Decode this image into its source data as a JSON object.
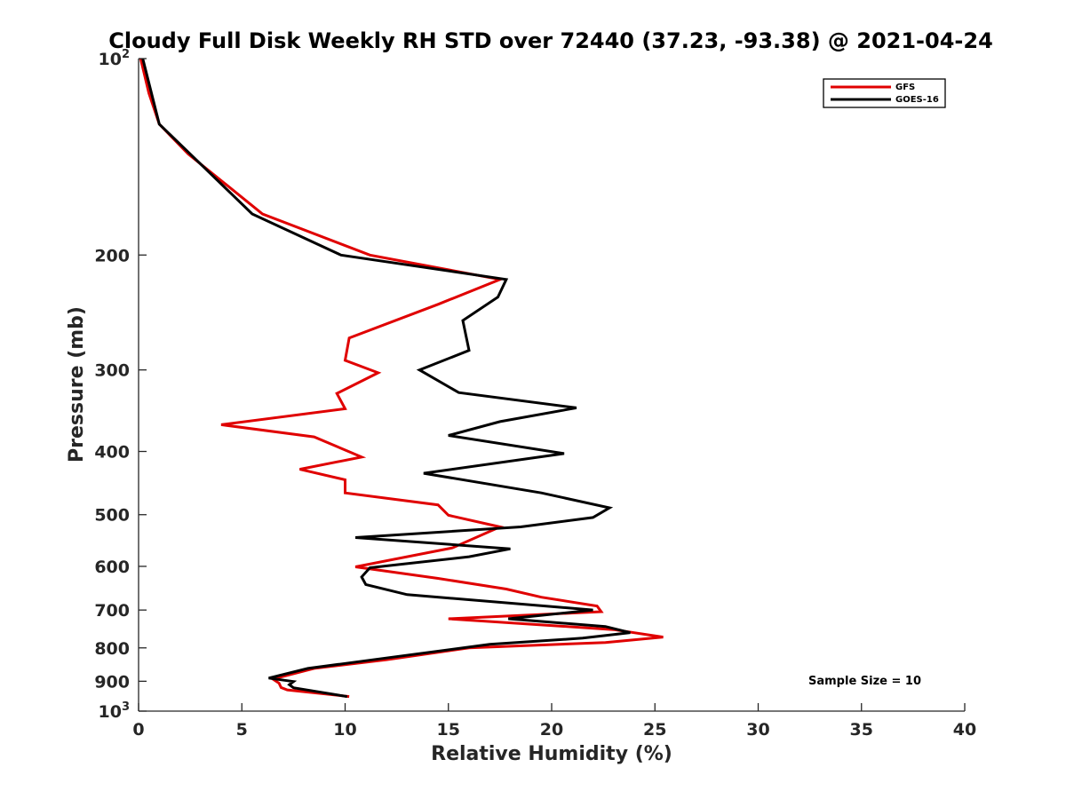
{
  "chart_data": {
    "type": "line",
    "title": "Cloudy Full Disk Weekly RH STD over 72440 (37.23, -93.38) @ 2021-04-24",
    "xlabel": "Relative Humidity (%)",
    "ylabel": "Pressure (mb)",
    "xlim": [
      0,
      40
    ],
    "ylim": [
      100,
      1000
    ],
    "y_scale": "log",
    "y_reversed": true,
    "x_ticks": [
      "0",
      "5",
      "10",
      "15",
      "20",
      "25",
      "30",
      "35",
      "40"
    ],
    "y_ticks": [
      {
        "value": 100,
        "base": "10",
        "sup": "2"
      },
      {
        "value": 200,
        "base": "200",
        "sup": ""
      },
      {
        "value": 300,
        "base": "300",
        "sup": ""
      },
      {
        "value": 400,
        "base": "400",
        "sup": ""
      },
      {
        "value": 500,
        "base": "500",
        "sup": ""
      },
      {
        "value": 600,
        "base": "600",
        "sup": ""
      },
      {
        "value": 700,
        "base": "700",
        "sup": ""
      },
      {
        "value": 800,
        "base": "800",
        "sup": ""
      },
      {
        "value": 900,
        "base": "900",
        "sup": ""
      },
      {
        "value": 1000,
        "base": "10",
        "sup": "3"
      }
    ],
    "grid": false,
    "legend_position": "top-right",
    "annotation": "Sample Size = 10",
    "series": [
      {
        "name": "GFS",
        "color": "#e00000",
        "points": [
          [
            0.1,
            100
          ],
          [
            0.5,
            113
          ],
          [
            1.0,
            126
          ],
          [
            2.4,
            140
          ],
          [
            6.0,
            173
          ],
          [
            11.2,
            200
          ],
          [
            17.5,
            218
          ],
          [
            14.5,
            238
          ],
          [
            10.2,
            268
          ],
          [
            10.0,
            290
          ],
          [
            11.6,
            303
          ],
          [
            9.6,
            326
          ],
          [
            10.0,
            344
          ],
          [
            4.0,
            364
          ],
          [
            8.5,
            380
          ],
          [
            10.8,
            408
          ],
          [
            7.8,
            426
          ],
          [
            10.0,
            442
          ],
          [
            10.0,
            463
          ],
          [
            14.5,
            483
          ],
          [
            15.0,
            501
          ],
          [
            17.5,
            522
          ],
          [
            15.2,
            562
          ],
          [
            10.5,
            601
          ],
          [
            14.5,
            626
          ],
          [
            17.8,
            650
          ],
          [
            19.5,
            669
          ],
          [
            22.2,
            690
          ],
          [
            22.4,
            704
          ],
          [
            15.0,
            722
          ],
          [
            23.0,
            750
          ],
          [
            25.4,
            770
          ],
          [
            22.6,
            785
          ],
          [
            16.0,
            800
          ],
          [
            12.0,
            834
          ],
          [
            8.5,
            860
          ],
          [
            6.5,
            893
          ],
          [
            6.8,
            906
          ],
          [
            6.9,
            920
          ],
          [
            7.2,
            928
          ],
          [
            10.2,
            950
          ]
        ]
      },
      {
        "name": "GOES-16",
        "color": "#000000",
        "points": [
          [
            0.2,
            100
          ],
          [
            1.0,
            126
          ],
          [
            2.5,
            140
          ],
          [
            5.5,
            173
          ],
          [
            9.8,
            200
          ],
          [
            17.8,
            218
          ],
          [
            17.4,
            232
          ],
          [
            15.7,
            252
          ],
          [
            16.0,
            280
          ],
          [
            13.6,
            300
          ],
          [
            15.5,
            325
          ],
          [
            21.2,
            343
          ],
          [
            17.5,
            360
          ],
          [
            15.0,
            378
          ],
          [
            20.6,
            403
          ],
          [
            13.8,
            432
          ],
          [
            19.5,
            463
          ],
          [
            22.8,
            488
          ],
          [
            22.0,
            505
          ],
          [
            18.5,
            522
          ],
          [
            10.5,
            542
          ],
          [
            18.0,
            564
          ],
          [
            16.0,
            580
          ],
          [
            11.2,
            603
          ],
          [
            10.8,
            623
          ],
          [
            11.0,
            640
          ],
          [
            13.0,
            663
          ],
          [
            22.0,
            700
          ],
          [
            17.9,
            722
          ],
          [
            22.6,
            742
          ],
          [
            23.8,
            758
          ],
          [
            21.5,
            773
          ],
          [
            17.0,
            790
          ],
          [
            11.5,
            833
          ],
          [
            8.2,
            860
          ],
          [
            6.3,
            890
          ],
          [
            7.5,
            901
          ],
          [
            7.3,
            911
          ],
          [
            7.5,
            921
          ],
          [
            10.1,
            950
          ]
        ]
      }
    ]
  }
}
